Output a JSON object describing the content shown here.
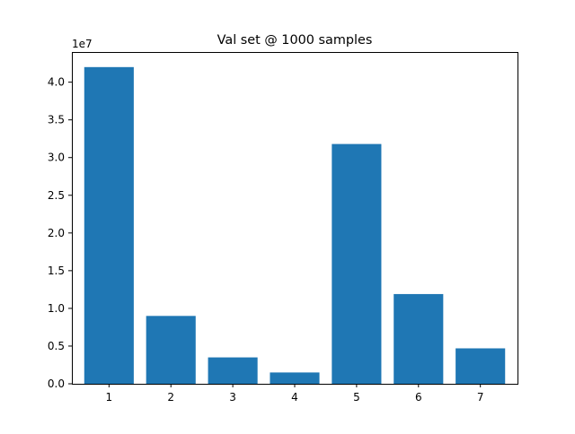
{
  "chart_data": {
    "type": "bar",
    "title": "Val set @ 1000 samples",
    "xlabel": "",
    "ylabel": "",
    "categories": [
      "1",
      "2",
      "3",
      "4",
      "5",
      "6",
      "7"
    ],
    "x": [
      1,
      2,
      3,
      4,
      5,
      6,
      7
    ],
    "values": [
      42000000,
      9000000,
      3500000,
      1500000,
      31800000,
      11900000,
      4700000
    ],
    "xlim": [
      0.4,
      7.6
    ],
    "ylim": [
      0,
      44000000
    ],
    "y_ticks": [
      0,
      5000000,
      10000000,
      15000000,
      20000000,
      25000000,
      30000000,
      35000000,
      40000000
    ],
    "y_tick_labels": [
      "0.0",
      "0.5",
      "1.0",
      "1.5",
      "2.0",
      "2.5",
      "3.0",
      "3.5",
      "4.0"
    ],
    "y_offset_label": "1e7",
    "bar_color": "#1f77b4",
    "grid": false,
    "legend": "none"
  }
}
